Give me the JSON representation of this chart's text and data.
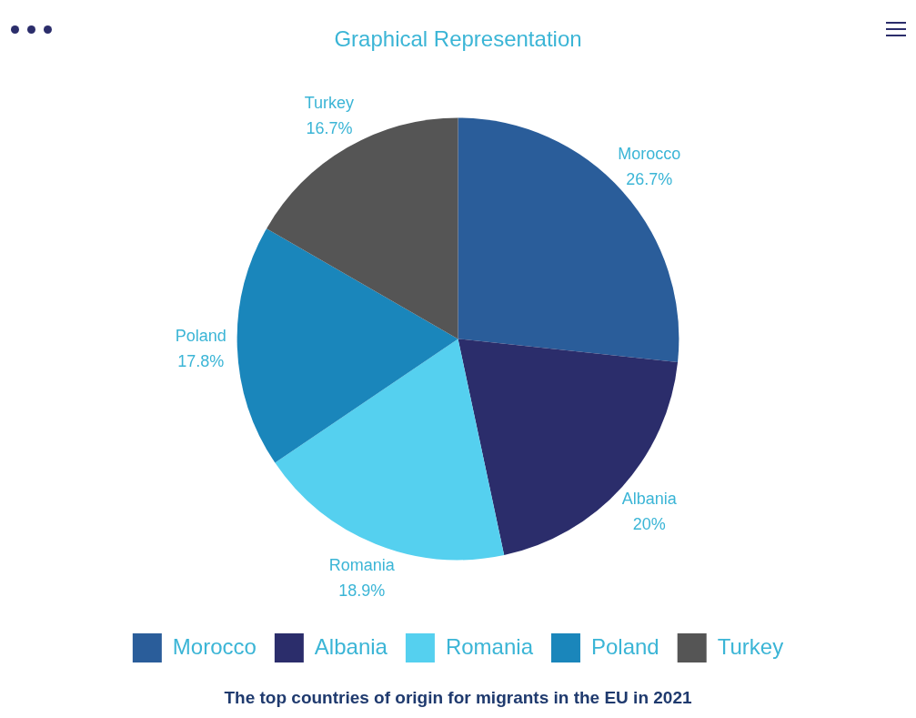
{
  "chart_data": {
    "type": "pie",
    "title": "Graphical Representation",
    "categories": [
      "Morocco",
      "Albania",
      "Romania",
      "Poland",
      "Turkey"
    ],
    "values": [
      26.7,
      20,
      18.9,
      17.8,
      16.7
    ],
    "value_labels": [
      "26.7%",
      "20%",
      "18.9%",
      "17.8%",
      "16.7%"
    ],
    "colors": [
      "#2a5d9a",
      "#2b2d6b",
      "#55d0ef",
      "#1a86bb",
      "#555555"
    ],
    "legend": "bottom",
    "annotations": [
      "The top countries of origin for migrants in the EU in 2021"
    ]
  }
}
